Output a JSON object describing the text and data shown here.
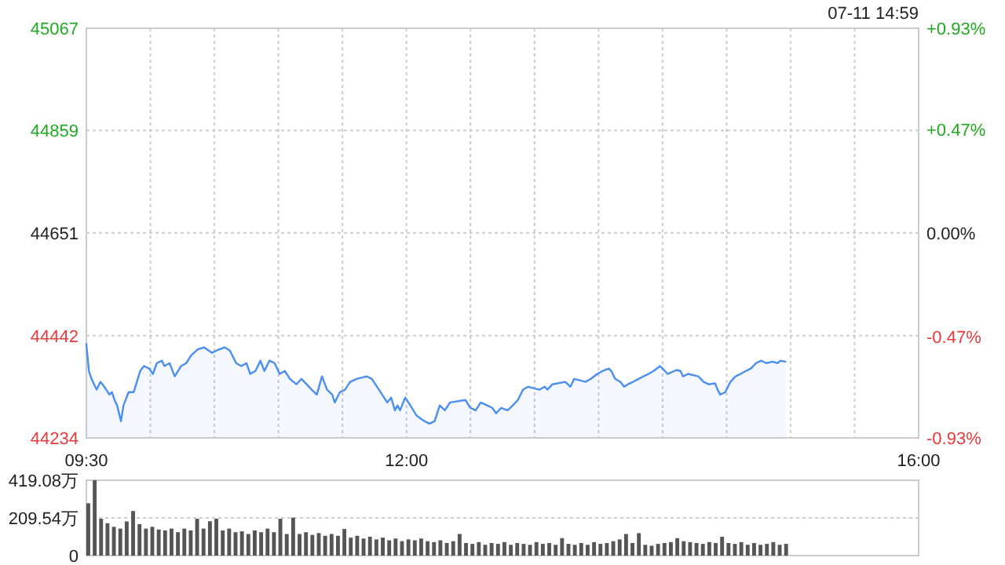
{
  "chart_data": [
    {
      "type": "area",
      "annotations": [
        "07-11 14:59"
      ],
      "xlim": [
        9.5,
        16
      ],
      "xticks": [
        {
          "value": 9.5,
          "label": "09:30"
        },
        {
          "value": 10,
          "label": null
        },
        {
          "value": 10.5,
          "label": null
        },
        {
          "value": 11,
          "label": null
        },
        {
          "value": 11.5,
          "label": null
        },
        {
          "value": 12,
          "label": "12:00"
        },
        {
          "value": 12.5,
          "label": null
        },
        {
          "value": 13,
          "label": null
        },
        {
          "value": 13.5,
          "label": null
        },
        {
          "value": 14,
          "label": null
        },
        {
          "value": 14.5,
          "label": null
        },
        {
          "value": 15,
          "label": null
        },
        {
          "value": 15.5,
          "label": null
        },
        {
          "value": 16,
          "label": "16:00"
        }
      ],
      "ylim": [
        44234,
        45067
      ],
      "yticks": [
        44234,
        44442,
        44651,
        44859,
        45067
      ],
      "y2lim": [
        -0.93,
        0.93
      ],
      "y2ticks": [
        {
          "value": -0.93,
          "label": "-0.93%"
        },
        {
          "value": -0.47,
          "label": "-0.47%"
        },
        {
          "value": 0,
          "label": "0.00%"
        },
        {
          "value": 0.47,
          "label": "+0.47%"
        },
        {
          "value": 0.93,
          "label": "+0.93%"
        }
      ],
      "grid": true,
      "series": [
        {
          "color": "#4a8ef0",
          "x": [
            9.5,
            9.52,
            9.54,
            9.58,
            9.61,
            9.64,
            9.68,
            9.7,
            9.72,
            9.74,
            9.77,
            9.79,
            9.83,
            9.87,
            9.92,
            9.95,
            9.99,
            10.02,
            10.05,
            10.09,
            10.11,
            10.15,
            10.19,
            10.24,
            10.28,
            10.32,
            10.37,
            10.42,
            10.48,
            10.52,
            10.58,
            10.62,
            10.67,
            10.71,
            10.75,
            10.78,
            10.82,
            10.86,
            10.89,
            10.93,
            10.97,
            11.01,
            11.05,
            11.09,
            11.14,
            11.18,
            11.22,
            11.26,
            11.3,
            11.34,
            11.38,
            11.42,
            11.44,
            11.48,
            11.52,
            11.56,
            11.61,
            11.69,
            11.73,
            11.77,
            11.81,
            11.85,
            11.88,
            11.91,
            11.93,
            11.95,
            11.99,
            12.03,
            12.08,
            12.14,
            12.18,
            12.22,
            12.26,
            12.3,
            12.34,
            12.46,
            12.5,
            12.54,
            12.58,
            12.63,
            12.67,
            12.7,
            12.74,
            12.79,
            12.83,
            12.87,
            12.91,
            12.95,
            13.04,
            13.08,
            13.1,
            13.14,
            13.24,
            13.28,
            13.31,
            13.4,
            13.44,
            13.49,
            13.53,
            13.58,
            13.6,
            13.63,
            13.67,
            13.7,
            13.73,
            13.77,
            13.85,
            13.89,
            13.93,
            13.98,
            14.0,
            14.04,
            14.11,
            14.14,
            14.16,
            14.2,
            14.28,
            14.32,
            14.36,
            14.41,
            14.43,
            14.45,
            14.49,
            14.53,
            14.57,
            14.61,
            14.65,
            14.69,
            14.73,
            14.77,
            14.81,
            14.86,
            14.9,
            14.92,
            14.96
          ],
          "values": [
            44425,
            44370,
            44354,
            44332,
            44348,
            44338,
            44322,
            44327,
            44311,
            44300,
            44268,
            44300,
            44327,
            44327,
            44370,
            44380,
            44375,
            44364,
            44386,
            44391,
            44380,
            44386,
            44359,
            44380,
            44386,
            44402,
            44414,
            44418,
            44407,
            44412,
            44418,
            44412,
            44386,
            44380,
            44386,
            44364,
            44370,
            44391,
            44370,
            44391,
            44386,
            44364,
            44370,
            44354,
            44343,
            44354,
            44343,
            44332,
            44322,
            44359,
            44332,
            44322,
            44306,
            44327,
            44332,
            44348,
            44354,
            44359,
            44354,
            44338,
            44322,
            44306,
            44316,
            44290,
            44300,
            44290,
            44316,
            44300,
            44279,
            44268,
            44263,
            44268,
            44300,
            44290,
            44306,
            44311,
            44295,
            44290,
            44306,
            44300,
            44295,
            44284,
            44295,
            44290,
            44300,
            44311,
            44332,
            44338,
            44332,
            44338,
            44332,
            44343,
            44348,
            44338,
            44354,
            44348,
            44354,
            44364,
            44370,
            44375,
            44370,
            44354,
            44348,
            44338,
            44343,
            44348,
            44359,
            44364,
            44370,
            44380,
            44375,
            44364,
            44372,
            44370,
            44359,
            44364,
            44359,
            44348,
            44343,
            44345,
            44332,
            44322,
            44327,
            44348,
            44359,
            44364,
            44370,
            44375,
            44386,
            44391,
            44386,
            44389,
            44386,
            44391,
            44389
          ]
        }
      ]
    },
    {
      "type": "bar",
      "xlim": [
        9.5,
        16
      ],
      "ylim": [
        0,
        419.08
      ],
      "yticks": [
        0,
        {
          "value": 209.54,
          "label": "209.54万"
        },
        {
          "value": 419.08,
          "label": "419.08万"
        }
      ],
      "grid": "y",
      "tick_labels": "y",
      "x": [
        9.5,
        9.55,
        9.6,
        9.65,
        9.7,
        9.75,
        9.8,
        9.85,
        9.9,
        9.95,
        10.0,
        10.05,
        10.1,
        10.15,
        10.2,
        10.25,
        10.3,
        10.35,
        10.4,
        10.45,
        10.5,
        10.55,
        10.6,
        10.65,
        10.7,
        10.75,
        10.8,
        10.85,
        10.9,
        10.95,
        11.0,
        11.05,
        11.1,
        11.15,
        11.2,
        11.25,
        11.3,
        11.35,
        11.4,
        11.45,
        11.5,
        11.55,
        11.6,
        11.65,
        11.7,
        11.75,
        11.8,
        11.85,
        11.9,
        11.95,
        12.0,
        12.05,
        12.1,
        12.15,
        12.2,
        12.25,
        12.3,
        12.35,
        12.4,
        12.45,
        12.5,
        12.55,
        12.6,
        12.65,
        12.7,
        12.75,
        12.8,
        12.85,
        12.9,
        12.95,
        13.0,
        13.05,
        13.1,
        13.15,
        13.2,
        13.25,
        13.3,
        13.35,
        13.4,
        13.45,
        13.5,
        13.55,
        13.6,
        13.65,
        13.7,
        13.75,
        13.8,
        13.85,
        13.9,
        13.95,
        14.0,
        14.05,
        14.1,
        14.15,
        14.2,
        14.25,
        14.3,
        14.35,
        14.4,
        14.45,
        14.5,
        14.55,
        14.6,
        14.65,
        14.7,
        14.75,
        14.8,
        14.85,
        14.9,
        14.95
      ],
      "series": [
        {
          "color": "#555555",
          "values": [
            291,
            419,
            205,
            180,
            160,
            150,
            190,
            248,
            175,
            150,
            160,
            145,
            140,
            150,
            130,
            150,
            140,
            205,
            150,
            191,
            205,
            140,
            150,
            130,
            135,
            120,
            140,
            130,
            150,
            130,
            205,
            120,
            211,
            120,
            130,
            115,
            125,
            110,
            120,
            110,
            148,
            100,
            110,
            95,
            105,
            90,
            100,
            85,
            95,
            80,
            90,
            85,
            95,
            80,
            75,
            85,
            70,
            80,
            120,
            70,
            65,
            75,
            60,
            70,
            65,
            75,
            60,
            70,
            65,
            60,
            75,
            65,
            70,
            60,
            97,
            65,
            60,
            70,
            60,
            75,
            65,
            70,
            80,
            90,
            120,
            70,
            125,
            60,
            55,
            65,
            70,
            75,
            97,
            80,
            75,
            70,
            65,
            75,
            70,
            105,
            70,
            65,
            75,
            60,
            70,
            60,
            65,
            75,
            60,
            65
          ]
        }
      ]
    }
  ]
}
